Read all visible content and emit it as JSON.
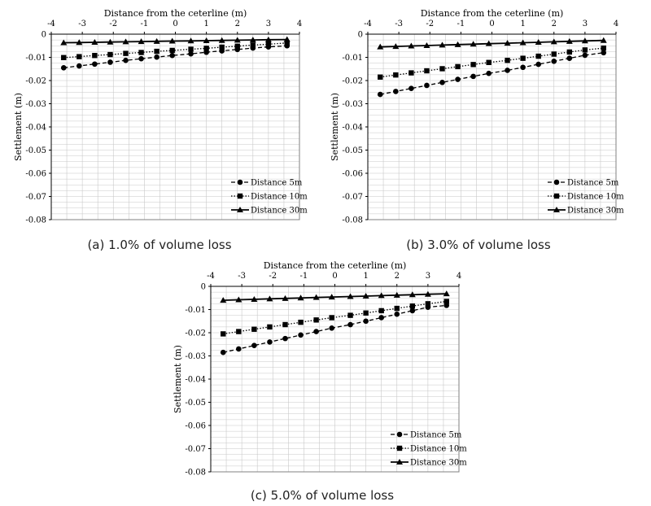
{
  "chart_data": [
    {
      "type": "line",
      "caption": "(a) 1.0% of volume loss",
      "xlabel": "Distance from the ceterline (m)",
      "ylabel": "Settlement (m)",
      "xlim": [
        -4,
        4
      ],
      "ylim": [
        -0.08,
        0
      ],
      "xticks": [
        "-4",
        "-3",
        "-2",
        "-1",
        "0",
        "1",
        "2",
        "3",
        "4"
      ],
      "yticks": [
        "0",
        "-0.01",
        "-0.02",
        "-0.03",
        "-0.04",
        "-0.05",
        "-0.06",
        "-0.07",
        "-0.08"
      ],
      "grid": true,
      "legend_position": "bottom-right",
      "x": [
        -3.6,
        -3.1,
        -2.6,
        -2.1,
        -1.6,
        -1.1,
        -0.6,
        -0.1,
        0.5,
        1,
        1.5,
        2,
        2.5,
        3,
        3.6
      ],
      "series": [
        {
          "name": "Distance 5m",
          "marker": "circle",
          "dash": "5,3",
          "values": [
            -0.0145,
            -0.0137,
            -0.0129,
            -0.0121,
            -0.0113,
            -0.0106,
            -0.0099,
            -0.0092,
            -0.0085,
            -0.0078,
            -0.0072,
            -0.0066,
            -0.006,
            -0.0055,
            -0.005
          ]
        },
        {
          "name": "Distance 10m",
          "marker": "square",
          "dash": "1.5,2",
          "values": [
            -0.0101,
            -0.0097,
            -0.0092,
            -0.0088,
            -0.0083,
            -0.0079,
            -0.0074,
            -0.007,
            -0.0065,
            -0.0061,
            -0.0056,
            -0.0052,
            -0.0047,
            -0.0043,
            -0.0038
          ]
        },
        {
          "name": "Distance 30m",
          "marker": "triangle",
          "dash": "",
          "values": [
            -0.0037,
            -0.0036,
            -0.0035,
            -0.0034,
            -0.0033,
            -0.0032,
            -0.0031,
            -0.003,
            -0.0029,
            -0.0028,
            -0.0027,
            -0.0026,
            -0.0025,
            -0.0024,
            -0.0023
          ]
        }
      ]
    },
    {
      "type": "line",
      "caption": "(b) 3.0% of volume loss",
      "xlabel": "Distance from the ceterline (m)",
      "ylabel": "Settlement (m)",
      "xlim": [
        -4,
        4
      ],
      "ylim": [
        -0.08,
        0
      ],
      "xticks": [
        "-4",
        "-3",
        "-2",
        "-1",
        "0",
        "1",
        "2",
        "3",
        "4"
      ],
      "yticks": [
        "0",
        "-0.01",
        "-0.02",
        "-0.03",
        "-0.04",
        "-0.05",
        "-0.06",
        "-0.07",
        "-0.08"
      ],
      "grid": true,
      "legend_position": "bottom-right",
      "x": [
        -3.6,
        -3.1,
        -2.6,
        -2.1,
        -1.6,
        -1.1,
        -0.6,
        -0.1,
        0.5,
        1,
        1.5,
        2,
        2.5,
        3,
        3.6
      ],
      "series": [
        {
          "name": "Distance 5m",
          "marker": "circle",
          "dash": "5,3",
          "values": [
            -0.026,
            -0.0247,
            -0.0234,
            -0.0221,
            -0.0208,
            -0.0195,
            -0.0182,
            -0.0169,
            -0.0156,
            -0.0143,
            -0.013,
            -0.0117,
            -0.0104,
            -0.0091,
            -0.008
          ]
        },
        {
          "name": "Distance 10m",
          "marker": "square",
          "dash": "1.5,2",
          "values": [
            -0.0185,
            -0.0176,
            -0.0167,
            -0.0158,
            -0.0149,
            -0.014,
            -0.0131,
            -0.0122,
            -0.0113,
            -0.0104,
            -0.0095,
            -0.0086,
            -0.0077,
            -0.0068,
            -0.006
          ]
        },
        {
          "name": "Distance 30m",
          "marker": "triangle",
          "dash": "",
          "values": [
            -0.0055,
            -0.0053,
            -0.0051,
            -0.0049,
            -0.0047,
            -0.0045,
            -0.0043,
            -0.0041,
            -0.0039,
            -0.0037,
            -0.0035,
            -0.0033,
            -0.0031,
            -0.0029,
            -0.0027
          ]
        }
      ]
    },
    {
      "type": "line",
      "caption": "(c) 5.0% of volume loss",
      "xlabel": "Distance from the ceterline (m)",
      "ylabel": "Settlement (m)",
      "xlim": [
        -4,
        4
      ],
      "ylim": [
        -0.08,
        0
      ],
      "xticks": [
        "-4",
        "-3",
        "-2",
        "-1",
        "0",
        "1",
        "2",
        "3",
        "4"
      ],
      "yticks": [
        "0",
        "-0.01",
        "-0.02",
        "-0.03",
        "-0.04",
        "-0.05",
        "-0.06",
        "-0.07",
        "-0.08"
      ],
      "grid": true,
      "legend_position": "bottom-right",
      "x": [
        -3.6,
        -3.1,
        -2.6,
        -2.1,
        -1.6,
        -1.1,
        -0.6,
        -0.1,
        0.5,
        1,
        1.5,
        2,
        2.5,
        3,
        3.6
      ],
      "series": [
        {
          "name": "Distance 5m",
          "marker": "circle",
          "dash": "5,3",
          "values": [
            -0.0285,
            -0.027,
            -0.0255,
            -0.024,
            -0.0225,
            -0.021,
            -0.0195,
            -0.018,
            -0.0165,
            -0.015,
            -0.0135,
            -0.012,
            -0.0105,
            -0.009,
            -0.0082
          ]
        },
        {
          "name": "Distance 10m",
          "marker": "square",
          "dash": "1.5,2",
          "values": [
            -0.0205,
            -0.0195,
            -0.0185,
            -0.0175,
            -0.0165,
            -0.0155,
            -0.0145,
            -0.0135,
            -0.0125,
            -0.0115,
            -0.0105,
            -0.0095,
            -0.0085,
            -0.0075,
            -0.0065
          ]
        },
        {
          "name": "Distance 30m",
          "marker": "triangle",
          "dash": "",
          "values": [
            -0.006,
            -0.0058,
            -0.0056,
            -0.0054,
            -0.0052,
            -0.005,
            -0.0048,
            -0.0046,
            -0.0044,
            -0.0042,
            -0.004,
            -0.0038,
            -0.0036,
            -0.0034,
            -0.0032
          ]
        }
      ]
    }
  ]
}
